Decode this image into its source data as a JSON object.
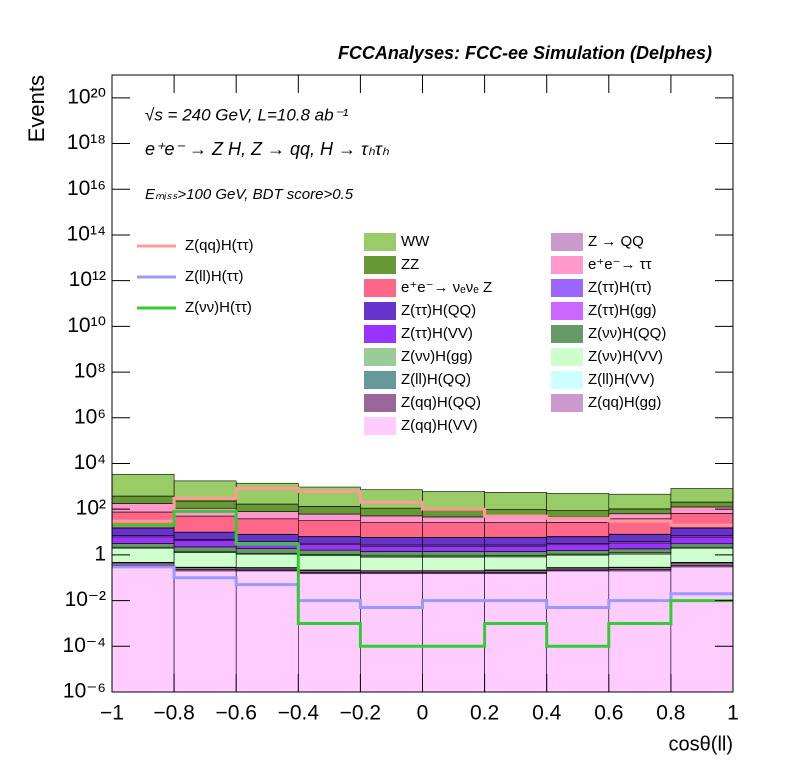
{
  "chart_data": {
    "type": "stacked_histogram",
    "title": "FCCAnalyses: FCC-ee Simulation (Delphes)",
    "annotations": [
      "√s = 240 GeV, L=10.8 ab⁻¹",
      "e⁺e⁻ → Z H, Z → qq, H → τₕτₕ",
      "Eₘᵢₛₛ>100 GeV, BDT score>0.5"
    ],
    "x_label": "cosθ(ll)",
    "y_label": "Events",
    "log_y": true,
    "bins": [
      -1,
      -0.8,
      -0.6,
      -0.4,
      -0.2,
      0,
      0.2,
      0.4,
      0.6,
      0.8,
      1
    ],
    "xlim": [
      -1,
      1
    ],
    "xticks": [
      {
        "value": -1,
        "label": "−1"
      },
      {
        "value": -0.8,
        "label": "−0.8"
      },
      {
        "value": -0.6,
        "label": "−0.6"
      },
      {
        "value": -0.4,
        "label": "−0.4"
      },
      {
        "value": -0.2,
        "label": "−0.2"
      },
      0,
      0.2,
      0.4,
      0.6,
      0.8,
      1
    ],
    "ylim": [
      1e-06,
      1e+21
    ],
    "yticks": [
      {
        "value": 1e-06,
        "label": "10⁻⁶"
      },
      {
        "value": 0.0001,
        "label": "10⁻⁴"
      },
      {
        "value": 0.01,
        "label": "10⁻²"
      },
      1,
      {
        "value": 100,
        "label": "10²"
      },
      {
        "value": 10000,
        "label": "10⁴"
      },
      {
        "value": 1000000,
        "label": "10⁶"
      },
      {
        "value": 100000000,
        "label": "10⁸"
      },
      {
        "value": 10000000000,
        "label": "10¹⁰"
      },
      {
        "value": 1000000000000,
        "label": "10¹²"
      },
      {
        "value": 100000000000000,
        "label": "10¹⁴"
      },
      {
        "value": 10000000000000000,
        "label": "10¹⁶"
      },
      {
        "value": 1000000000000000000,
        "label": "10¹⁸"
      },
      {
        "value": 100000000000000000000,
        "label": "10²⁰"
      }
    ],
    "series": [
      {
        "name": "WW",
        "color": "#99cc66",
        "values": [
          3000,
          1500,
          1200,
          800,
          600,
          500,
          450,
          400,
          350,
          600
        ]
      },
      {
        "name": "Z → QQ",
        "color": "#cc99cc",
        "values": [
          0.5,
          0.2,
          0.1,
          0.1,
          0.1,
          0.1,
          0.1,
          0.1,
          0.2,
          0.4
        ]
      },
      {
        "name": "ZZ",
        "color": "#669933",
        "values": [
          200,
          120,
          90,
          70,
          60,
          50,
          50,
          40,
          40,
          80
        ]
      },
      {
        "name": "e⁺e⁻→ ττ",
        "color": "#ff99cc",
        "values": [
          100,
          60,
          40,
          30,
          25,
          20,
          20,
          20,
          25,
          60
        ]
      },
      {
        "name": "e⁺e⁻→ νₑνₑ Z",
        "color": "#ff6688",
        "values": [
          60,
          40,
          30,
          25,
          20,
          20,
          20,
          20,
          30,
          50
        ]
      },
      {
        "name": "Z(ττ)H(ττ)",
        "color": "#9966ff",
        "values": [
          0.3,
          0.2,
          0.2,
          0.2,
          0.15,
          0.15,
          0.2,
          0.2,
          0.2,
          0.3
        ]
      },
      {
        "name": "Z(ττ)H(QQ)",
        "color": "#6633cc",
        "values": [
          8,
          5,
          4,
          3,
          3,
          3,
          3,
          3,
          4,
          8
        ]
      },
      {
        "name": "Z(ττ)H(gg)",
        "color": "#cc66ff",
        "values": [
          0.8,
          0.5,
          0.4,
          0.4,
          0.3,
          0.3,
          0.3,
          0.4,
          0.5,
          0.8
        ]
      },
      {
        "name": "Z(ττ)H(VV)",
        "color": "#9933ff",
        "values": [
          3,
          2,
          1.5,
          1.2,
          1,
          1,
          1,
          1.2,
          1.5,
          3
        ]
      },
      {
        "name": "Z(νν)H(QQ)",
        "color": "#669966",
        "values": [
          1,
          0.8,
          0.7,
          0.6,
          0.5,
          0.5,
          0.5,
          0.5,
          0.6,
          0.9
        ]
      },
      {
        "name": "Z(νν)H(gg)",
        "color": "#99cc99",
        "values": [
          0.2,
          0.15,
          0.1,
          0.1,
          0.1,
          0.1,
          0.1,
          0.1,
          0.15,
          0.2
        ]
      },
      {
        "name": "Z(νν)H(VV)",
        "color": "#ccffcc",
        "values": [
          1.5,
          1,
          0.8,
          0.7,
          0.6,
          0.6,
          0.6,
          0.7,
          0.8,
          1.5
        ]
      },
      {
        "name": "Z(ll)H(QQ)",
        "color": "#669999",
        "values": [
          0.02,
          0.01,
          0.01,
          0.01,
          0.005,
          0.005,
          0.01,
          0.01,
          0.01,
          0.02
        ]
      },
      {
        "name": "Z(ll)H(VV)",
        "color": "#ccffff",
        "values": [
          0.001,
          0.0005,
          0.0002,
          0.0001,
          0,
          0,
          0.0001,
          0.0002,
          0.0005,
          0.001
        ]
      },
      {
        "name": "Z(qq)H(QQ)",
        "color": "#996699",
        "values": [
          0.1,
          0.05,
          0.05,
          0.04,
          0.03,
          0.03,
          0.04,
          0.05,
          0.05,
          0.1
        ]
      },
      {
        "name": "Z(qq)H(gg)",
        "color": "#cc99cc",
        "values": [
          0.05,
          0.03,
          0.02,
          0.02,
          0.02,
          0.02,
          0.02,
          0.02,
          0.03,
          0.05
        ]
      },
      {
        "name": "Z(qq)H(VV)",
        "color": "#ffccff",
        "values": [
          0.3,
          0.2,
          0.2,
          0.15,
          0.15,
          0.15,
          0.15,
          0.2,
          0.2,
          0.3
        ]
      }
    ],
    "line_series": [
      {
        "name": "Z(qq)H(ττ)",
        "color": "#ff9999",
        "values": [
          30,
          300,
          800,
          600,
          200,
          100,
          50,
          40,
          30,
          20
        ]
      },
      {
        "name": "Z(ll)H(ττ)",
        "color": "#9999ff",
        "values": [
          0.3,
          0.1,
          0.05,
          0.01,
          0.005,
          0.01,
          0.01,
          0.005,
          0.01,
          0.02
        ]
      },
      {
        "name": "Z(νν)H(ττ)",
        "color": "#33cc33",
        "values": [
          20,
          80,
          3,
          0.001,
          0.0001,
          0.0001,
          0.001,
          0.0001,
          0.001,
          0.01
        ]
      }
    ]
  }
}
